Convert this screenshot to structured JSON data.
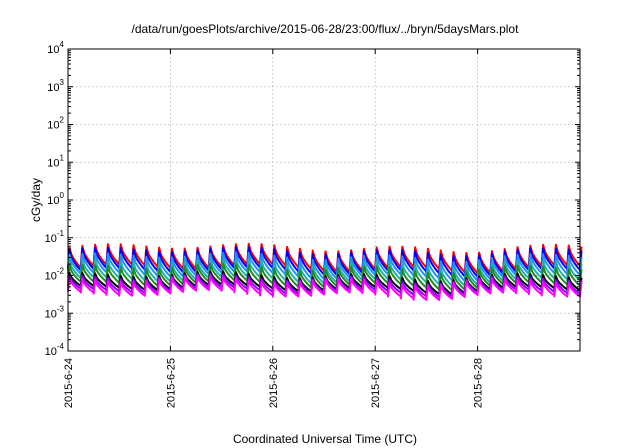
{
  "chart_data": {
    "type": "line",
    "title": "/data/run/goesPlots/archive/2015-06-28/23:00/flux/../bryn/5daysMars.plot",
    "xlabel": "Coordinated Universal Time (UTC)",
    "ylabel": "cGy/day",
    "yscale": "log",
    "ylim": [
      0.0001,
      10000
    ],
    "xlim": [
      0,
      5
    ],
    "y_ticks": [
      {
        "base": "10",
        "exp": "-4"
      },
      {
        "base": "10",
        "exp": "-3"
      },
      {
        "base": "10",
        "exp": "-2"
      },
      {
        "base": "10",
        "exp": "-1"
      },
      {
        "base": "10",
        "exp": "0"
      },
      {
        "base": "10",
        "exp": "1"
      },
      {
        "base": "10",
        "exp": "2"
      },
      {
        "base": "10",
        "exp": "3"
      },
      {
        "base": "10",
        "exp": "4"
      }
    ],
    "x_ticks": [
      "2015-6-24",
      "2015-6-25",
      "2015-6-26",
      "2015-6-27",
      "2015-6-28"
    ],
    "grid": true,
    "sawtooth_cycles_per_day": 8,
    "series": [
      {
        "color": "#ff0000",
        "peak": 0.055,
        "trough": 0.016
      },
      {
        "color": "#0000ff",
        "peak": 0.045,
        "trough": 0.013
      },
      {
        "color": "#1e90ff",
        "peak": 0.032,
        "trough": 0.01
      },
      {
        "color": "#20b2aa",
        "peak": 0.022,
        "trough": 0.0075
      },
      {
        "color": "#228b22",
        "peak": 0.016,
        "trough": 0.0058
      },
      {
        "color": "#000000",
        "peak": 0.01,
        "trough": 0.0045
      },
      {
        "color": "#8b00ff",
        "peak": 0.0085,
        "trough": 0.0038
      },
      {
        "color": "#ff00ff",
        "peak": 0.0075,
        "trough": 0.0032
      }
    ]
  }
}
